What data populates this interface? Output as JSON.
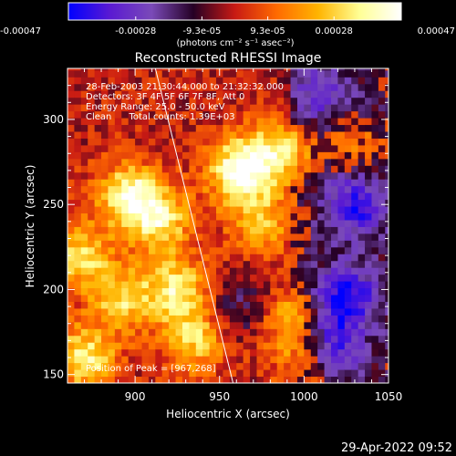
{
  "chart_data": {
    "type": "heatmap",
    "title": "Reconstructed RHESSI Image",
    "xlabel": "Heliocentric X (arcsec)",
    "ylabel": "Heliocentric Y (arcsec)",
    "xlim": [
      860,
      1050
    ],
    "ylim": [
      145,
      330
    ],
    "xticks": [
      900,
      950,
      1000,
      1050
    ],
    "yticks": [
      150,
      200,
      250,
      300
    ],
    "colorbar": {
      "range": [
        -0.00047,
        0.00047
      ],
      "tick_values": [
        -0.00047,
        -0.00028,
        -9.3e-05,
        9.3e-05,
        0.00028,
        0.00047
      ],
      "tick_labels": [
        "-0.00047",
        "-0.00028",
        "-9.3e-05",
        "9.3e-05",
        "0.00028",
        "0.00047"
      ],
      "unit_label": "(photons cm⁻² s⁻¹ asec⁻²)",
      "colors": [
        "#0000ff",
        "#5a1ad2",
        "#7a4ab8",
        "#250025",
        "#c81a14",
        "#ff6a00",
        "#ffb400",
        "#ffff96",
        "#ffffff"
      ]
    },
    "annotations": [
      "28-Feb-2003 21:30:44.000 to 21:32:32.000",
      "Detectors: 3F 4F 5F 6F 7F 8F, Att 0",
      "Energy Range: 25.0 - 50.0 keV",
      "Clean      Total counts: 1.39E+03"
    ],
    "peak_label": "Position of Peak = [967,268]",
    "peak": [
      967,
      268
    ],
    "limb_line": [
      [
        912,
        330
      ],
      [
        958,
        145
      ]
    ],
    "value_range": [
      -0.00047,
      0.00047
    ],
    "hotspots": [
      {
        "x": 962,
        "y": 270,
        "value": 0.00047
      },
      {
        "x": 897,
        "y": 255,
        "value": 0.00042
      },
      {
        "x": 868,
        "y": 220,
        "value": 0.0003
      },
      {
        "x": 915,
        "y": 240,
        "value": 0.00032
      },
      {
        "x": 893,
        "y": 195,
        "value": 0.0003
      },
      {
        "x": 925,
        "y": 200,
        "value": 0.00034
      },
      {
        "x": 870,
        "y": 160,
        "value": 0.00036
      },
      {
        "x": 935,
        "y": 170,
        "value": 0.00028
      },
      {
        "x": 985,
        "y": 282,
        "value": 0.00032
      },
      {
        "x": 975,
        "y": 240,
        "value": 0.00025
      },
      {
        "x": 990,
        "y": 185,
        "value": 0.00022
      },
      {
        "x": 1030,
        "y": 285,
        "value": 0.00012
      },
      {
        "x": 1000,
        "y": 160,
        "value": 0.0002
      }
    ],
    "cold_regions": [
      {
        "x": 1025,
        "y": 195,
        "value": -0.00035
      },
      {
        "x": 1030,
        "y": 250,
        "value": -0.0003
      },
      {
        "x": 1015,
        "y": 165,
        "value": -0.00028
      },
      {
        "x": 965,
        "y": 190,
        "value": -0.00018
      },
      {
        "x": 1010,
        "y": 315,
        "value": -0.0002
      }
    ]
  },
  "footer_timestamp": "29-Apr-2022 09:52"
}
